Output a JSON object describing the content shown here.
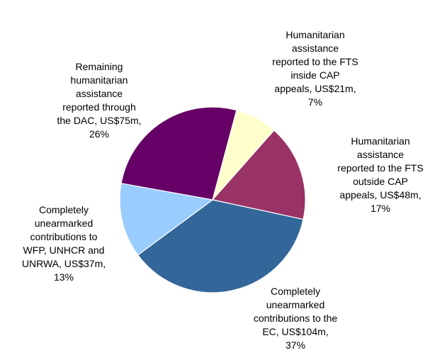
{
  "chart_data": {
    "type": "pie",
    "start_angle_deg": 15,
    "direction": "clockwise",
    "slices": [
      {
        "label": "Humanitarian\nassistance\nreported to the FTS\ninside CAP\nappeals, US$21m,\n7%",
        "value": 21,
        "percent": 7,
        "color": "#ffffcc"
      },
      {
        "label": "Humanitarian\nassistance\nreported to the FTS\noutside CAP\nappeals, US$48m,\n17%",
        "value": 48,
        "percent": 17,
        "color": "#993366"
      },
      {
        "label": "Completely\nunearmarked\ncontributions to the\nEC, US$104m,\n37%",
        "value": 104,
        "percent": 37,
        "color": "#336699"
      },
      {
        "label": "Completely\nunearmarked\ncontributions to\nWFP, UNHCR and\nUNRWA, US$37m,\n13%",
        "value": 37,
        "percent": 13,
        "color": "#99ccff"
      },
      {
        "label": "Remaining\nhumanitarian\nassistance\nreported through\nthe DAC, US$75m,\n26%",
        "value": 75,
        "percent": 26,
        "color": "#660066"
      }
    ]
  }
}
